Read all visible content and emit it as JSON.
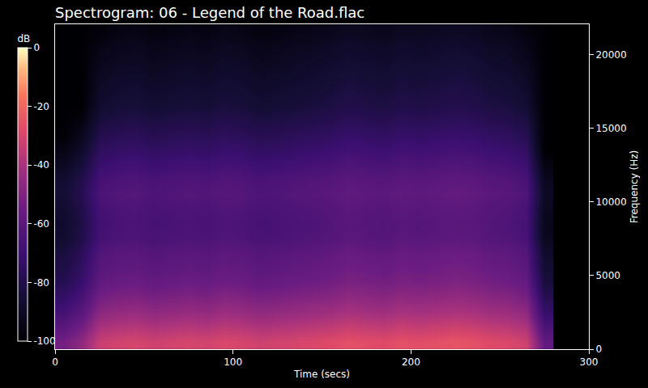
{
  "chart_data": {
    "type": "heatmap",
    "title": "Spectrogram: 06 - Legend of the Road.flac",
    "x_label": "Time (secs)",
    "y_label": "Frequency (Hz)",
    "x": [
      5,
      15,
      25,
      35,
      45,
      55,
      65,
      75,
      85,
      95,
      105,
      115,
      125,
      135,
      145,
      155,
      165,
      175,
      185,
      195,
      205,
      215,
      225,
      235,
      245,
      255,
      265,
      275
    ],
    "y": [
      500,
      1500,
      2500,
      3500,
      4500,
      5500,
      6500,
      7500,
      8500,
      9500,
      10500,
      11500,
      12500,
      13500,
      14500,
      15500,
      16500,
      17500,
      18500,
      19500,
      20500,
      21500
    ],
    "z": [
      [
        -53,
        -46,
        -33,
        -31,
        -30,
        -32,
        -31,
        -30,
        -31,
        -29,
        -30,
        -32,
        -31,
        -30,
        -29,
        -28,
        -26,
        -27,
        -28,
        -26,
        -27,
        -26,
        -25,
        -26,
        -28,
        -29,
        -32,
        -58
      ],
      [
        -60,
        -53,
        -40,
        -38,
        -37,
        -39,
        -38,
        -37,
        -38,
        -36,
        -37,
        -39,
        -38,
        -37,
        -36,
        -35,
        -33,
        -34,
        -35,
        -33,
        -34,
        -33,
        -32,
        -33,
        -35,
        -36,
        -39,
        -65
      ],
      [
        -67,
        -60,
        -47,
        -45,
        -44,
        -46,
        -45,
        -44,
        -45,
        -43,
        -44,
        -46,
        -45,
        -44,
        -43,
        -42,
        -40,
        -41,
        -42,
        -40,
        -41,
        -40,
        -39,
        -40,
        -42,
        -43,
        -46,
        -72
      ],
      [
        -73,
        -66,
        -53,
        -51,
        -50,
        -52,
        -51,
        -50,
        -51,
        -49,
        -50,
        -52,
        -51,
        -50,
        -49,
        -48,
        -46,
        -47,
        -48,
        -46,
        -47,
        -46,
        -45,
        -46,
        -48,
        -49,
        -52,
        -78
      ],
      [
        -78,
        -71,
        -58,
        -56,
        -55,
        -57,
        -56,
        -55,
        -56,
        -54,
        -55,
        -57,
        -56,
        -55,
        -54,
        -53,
        -51,
        -52,
        -53,
        -51,
        -52,
        -51,
        -50,
        -51,
        -53,
        -54,
        -57,
        -83
      ],
      [
        -81,
        -74,
        -61,
        -59,
        -58,
        -60,
        -59,
        -58,
        -59,
        -57,
        -58,
        -60,
        -59,
        -58,
        -57,
        -56,
        -54,
        -55,
        -56,
        -54,
        -55,
        -54,
        -53,
        -54,
        -56,
        -57,
        -60,
        -86
      ],
      [
        -83,
        -76,
        -63,
        -61,
        -60,
        -62,
        -61,
        -60,
        -61,
        -59,
        -60,
        -62,
        -61,
        -60,
        -59,
        -58,
        -56,
        -57,
        -58,
        -56,
        -57,
        -56,
        -55,
        -56,
        -58,
        -59,
        -62,
        -88
      ],
      [
        -87,
        -80,
        -67,
        -65,
        -64,
        -66,
        -65,
        -64,
        -65,
        -63,
        -64,
        -66,
        -65,
        -64,
        -63,
        -62,
        -60,
        -61,
        -62,
        -60,
        -61,
        -60,
        -59,
        -60,
        -62,
        -63,
        -66,
        -92
      ],
      [
        -88,
        -81,
        -68,
        -66,
        -65,
        -67,
        -66,
        -65,
        -66,
        -64,
        -65,
        -67,
        -66,
        -65,
        -64,
        -63,
        -61,
        -62,
        -63,
        -61,
        -62,
        -61,
        -60,
        -61,
        -63,
        -64,
        -67,
        -93
      ],
      [
        -87,
        -80,
        -67,
        -65,
        -64,
        -66,
        -65,
        -64,
        -65,
        -63,
        -64,
        -66,
        -65,
        -64,
        -63,
        -62,
        -60,
        -61,
        -62,
        -60,
        -61,
        -60,
        -59,
        -60,
        -62,
        -63,
        -66,
        -92
      ],
      [
        -85,
        -78,
        -65,
        -63,
        -62,
        -64,
        -63,
        -62,
        -63,
        -61,
        -62,
        -64,
        -63,
        -62,
        -61,
        -60,
        -58,
        -59,
        -60,
        -58,
        -59,
        -58,
        -57,
        -58,
        -60,
        -61,
        -64,
        -90
      ],
      [
        -87,
        -80,
        -67,
        -65,
        -64,
        -66,
        -65,
        -64,
        -65,
        -63,
        -64,
        -66,
        -65,
        -64,
        -63,
        -62,
        -60,
        -61,
        -62,
        -60,
        -61,
        -60,
        -59,
        -60,
        -62,
        -63,
        -66,
        -92
      ],
      [
        -91,
        -84,
        -71,
        -69,
        -68,
        -70,
        -69,
        -68,
        -69,
        -67,
        -68,
        -70,
        -69,
        -68,
        -67,
        -66,
        -64,
        -65,
        -66,
        -64,
        -65,
        -64,
        -63,
        -64,
        -66,
        -67,
        -70,
        -96
      ],
      [
        -95,
        -88,
        -75,
        -73,
        -72,
        -74,
        -73,
        -72,
        -73,
        -71,
        -72,
        -74,
        -73,
        -72,
        -71,
        -70,
        -68,
        -69,
        -70,
        -68,
        -69,
        -68,
        -67,
        -68,
        -70,
        -71,
        -74,
        -100
      ],
      [
        -99,
        -92,
        -79,
        -77,
        -76,
        -78,
        -77,
        -76,
        -77,
        -75,
        -76,
        -78,
        -77,
        -76,
        -75,
        -74,
        -72,
        -73,
        -74,
        -72,
        -73,
        -72,
        -71,
        -72,
        -74,
        -75,
        -78,
        -100
      ],
      [
        -100,
        -96,
        -83,
        -81,
        -80,
        -82,
        -81,
        -80,
        -81,
        -79,
        -80,
        -82,
        -81,
        -80,
        -79,
        -78,
        -76,
        -77,
        -78,
        -76,
        -77,
        -76,
        -75,
        -76,
        -78,
        -79,
        -82,
        -100
      ],
      [
        -100,
        -100,
        -87,
        -85,
        -84,
        -86,
        -85,
        -84,
        -85,
        -83,
        -84,
        -86,
        -85,
        -84,
        -83,
        -82,
        -80,
        -81,
        -82,
        -80,
        -81,
        -80,
        -79,
        -80,
        -82,
        -83,
        -86,
        -100
      ],
      [
        -100,
        -100,
        -89,
        -87,
        -86,
        -88,
        -87,
        -86,
        -87,
        -85,
        -86,
        -88,
        -87,
        -86,
        -85,
        -84,
        -82,
        -83,
        -84,
        -82,
        -83,
        -82,
        -81,
        -82,
        -84,
        -85,
        -88,
        -100
      ],
      [
        -100,
        -100,
        -91,
        -89,
        -88,
        -90,
        -89,
        -88,
        -89,
        -87,
        -88,
        -90,
        -89,
        -88,
        -87,
        -86,
        -84,
        -85,
        -86,
        -84,
        -85,
        -84,
        -83,
        -84,
        -86,
        -87,
        -90,
        -100
      ],
      [
        -100,
        -100,
        -93,
        -91,
        -90,
        -92,
        -91,
        -90,
        -91,
        -89,
        -90,
        -92,
        -91,
        -90,
        -89,
        -88,
        -86,
        -87,
        -88,
        -86,
        -87,
        -86,
        -85,
        -86,
        -88,
        -89,
        -92,
        -100
      ],
      [
        -100,
        -100,
        -95,
        -93,
        -92,
        -94,
        -93,
        -92,
        -93,
        -91,
        -92,
        -94,
        -93,
        -92,
        -91,
        -90,
        -88,
        -89,
        -90,
        -88,
        -89,
        -88,
        -87,
        -88,
        -90,
        -91,
        -94,
        -100
      ],
      [
        -100,
        -100,
        -98,
        -96,
        -95,
        -97,
        -96,
        -95,
        -96,
        -94,
        -95,
        -97,
        -96,
        -95,
        -94,
        -93,
        -91,
        -92,
        -93,
        -91,
        -92,
        -91,
        -90,
        -91,
        -93,
        -94,
        -97,
        -100
      ]
    ],
    "xlim": [
      0,
      300
    ],
    "xticks": [
      0,
      100,
      200,
      300
    ],
    "ylim": [
      0,
      22050
    ],
    "yticks": [
      0,
      5000,
      10000,
      15000,
      20000
    ],
    "colorbar": {
      "title": "dB",
      "range": [
        -100,
        0
      ],
      "ticks": [
        0,
        -20,
        -40,
        -60,
        -80,
        -100
      ]
    }
  }
}
